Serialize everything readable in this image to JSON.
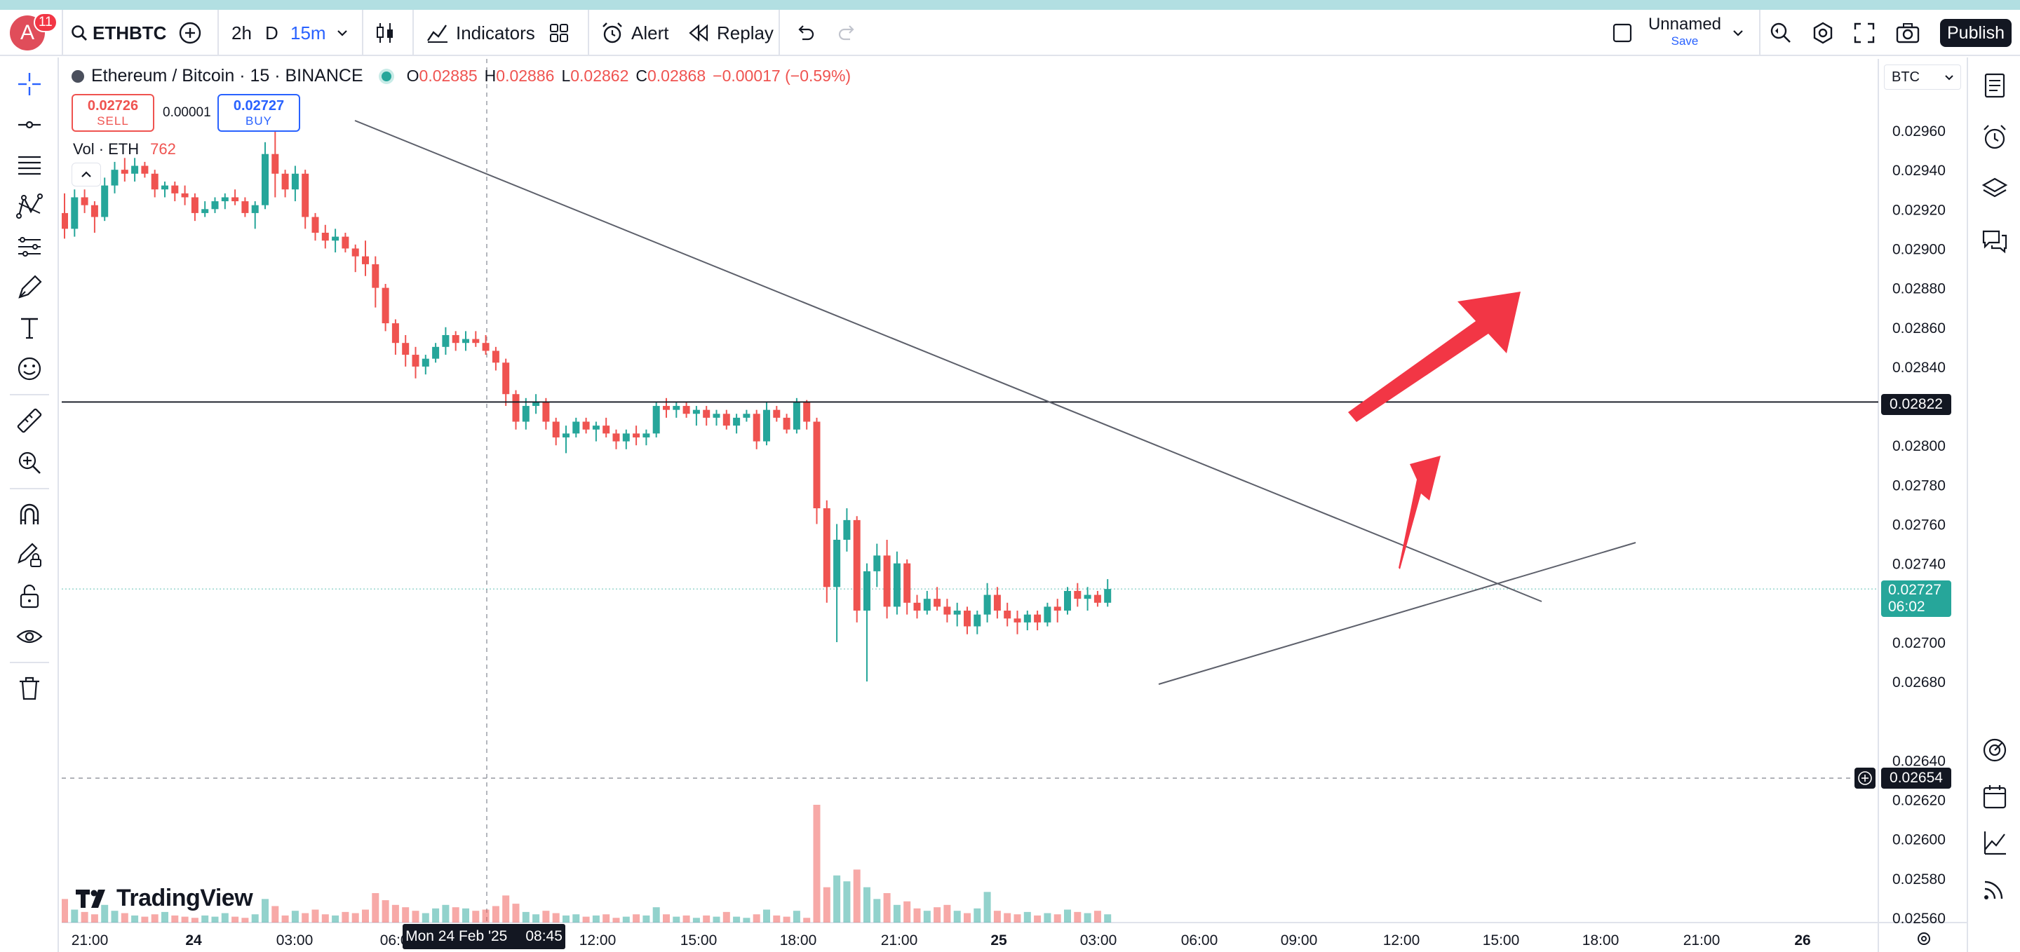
{
  "header": {
    "avatar_letter": "A",
    "notification_count": "11",
    "symbol": "ETHBTC",
    "intervals": [
      "2h",
      "D",
      "15m"
    ],
    "indicators_label": "Indicators",
    "alert_label": "Alert",
    "replay_label": "Replay",
    "layout_name": "Unnamed",
    "save_label": "Save",
    "publish_label": "Publish"
  },
  "legend": {
    "title": "Ethereum / Bitcoin · 15 · BINANCE",
    "o_label": "O",
    "o_value": "0.02885",
    "h_label": "H",
    "h_value": "0.02886",
    "l_label": "L",
    "l_value": "0.02862",
    "c_label": "C",
    "c_value": "0.02868",
    "change": "−0.00017 (−0.59%)",
    "sell_price": "0.02726",
    "sell_label": "SELL",
    "spread": "0.00001",
    "buy_price": "0.02727",
    "buy_label": "BUY",
    "vol_label": "Vol · ETH",
    "vol_value": "762"
  },
  "watermark": "TradingView",
  "currency_label": "BTC",
  "crosshair_date": "Mon 24 Feb '25",
  "crosshair_time": "08:45",
  "price_tags": {
    "horizontal_line": "0.02822",
    "last_price": "0.02727",
    "countdown": "06:02",
    "crosshair_price": "0.02654"
  },
  "colors": {
    "up": "#26a69a",
    "down": "#ef5350",
    "arrow": "#f23645",
    "accent": "#2962ff"
  },
  "chart_data": {
    "type": "candlestick",
    "symbol": "ETHBTC",
    "interval": "15",
    "y_ticks": [
      0.0296,
      0.0294,
      0.0292,
      0.029,
      0.0288,
      0.0286,
      0.0284,
      0.028,
      0.0278,
      0.0276,
      0.0274,
      0.027,
      0.0268,
      0.0264,
      0.0262,
      0.026,
      0.0258,
      0.0256
    ],
    "y_tick_labels": [
      "0.02960",
      "0.02940",
      "0.02920",
      "0.02900",
      "0.02880",
      "0.02860",
      "0.02840",
      "0.02800",
      "0.02780",
      "0.02760",
      "0.02740",
      "0.02700",
      "0.02680",
      "0.02640",
      "0.02620",
      "0.02600",
      "0.02580",
      "0.02560"
    ],
    "x_ticks": [
      "21:00",
      "24",
      "03:00",
      "06:00",
      "12:00",
      "15:00",
      "18:00",
      "21:00",
      "25",
      "03:00",
      "06:00",
      "09:00",
      "12:00",
      "15:00",
      "18:00",
      "21:00",
      "26"
    ],
    "ylim": [
      0.02553,
      0.02983
    ],
    "horizontal_line": 0.02822,
    "trendlines": [
      {
        "from": [
          0,
          0.02967
        ],
        "to": [
          127,
          0.02717
        ]
      },
      {
        "from": [
          77,
          0.02679
        ],
        "to": [
          123,
          0.0275
        ]
      }
    ],
    "candles": [
      [
        0.02918,
        0.02928,
        0.02905,
        0.0291
      ],
      [
        0.0291,
        0.0293,
        0.02906,
        0.02926
      ],
      [
        0.02926,
        0.0293,
        0.02918,
        0.02922
      ],
      [
        0.02922,
        0.02924,
        0.02908,
        0.02916
      ],
      [
        0.02916,
        0.02936,
        0.02914,
        0.02932
      ],
      [
        0.02932,
        0.02944,
        0.02928,
        0.0294
      ],
      [
        0.0294,
        0.02946,
        0.02934,
        0.02938
      ],
      [
        0.02938,
        0.02946,
        0.02934,
        0.02942
      ],
      [
        0.02942,
        0.02944,
        0.02936,
        0.02938
      ],
      [
        0.02938,
        0.0294,
        0.02926,
        0.0293
      ],
      [
        0.0293,
        0.02934,
        0.02926,
        0.02932
      ],
      [
        0.02932,
        0.02934,
        0.02924,
        0.02928
      ],
      [
        0.02928,
        0.02932,
        0.02922,
        0.02926
      ],
      [
        0.02926,
        0.02928,
        0.02914,
        0.02918
      ],
      [
        0.02918,
        0.02924,
        0.02916,
        0.0292
      ],
      [
        0.0292,
        0.02926,
        0.02918,
        0.02924
      ],
      [
        0.02924,
        0.02928,
        0.0292,
        0.02926
      ],
      [
        0.02926,
        0.0293,
        0.02922,
        0.02924
      ],
      [
        0.02924,
        0.02926,
        0.02916,
        0.02918
      ],
      [
        0.02918,
        0.02924,
        0.0291,
        0.02922
      ],
      [
        0.02922,
        0.02954,
        0.0292,
        0.02948
      ],
      [
        0.02948,
        0.02967,
        0.02926,
        0.02938
      ],
      [
        0.02938,
        0.0294,
        0.02926,
        0.0293
      ],
      [
        0.0293,
        0.02942,
        0.02924,
        0.02938
      ],
      [
        0.02938,
        0.0294,
        0.0291,
        0.02916
      ],
      [
        0.02916,
        0.02918,
        0.02904,
        0.02908
      ],
      [
        0.02908,
        0.02912,
        0.029,
        0.02904
      ],
      [
        0.02904,
        0.0291,
        0.02898,
        0.02906
      ],
      [
        0.02906,
        0.02908,
        0.02898,
        0.029
      ],
      [
        0.029,
        0.02902,
        0.02888,
        0.02896
      ],
      [
        0.02896,
        0.02904,
        0.02886,
        0.02892
      ],
      [
        0.02892,
        0.02896,
        0.0287,
        0.0288
      ],
      [
        0.0288,
        0.02882,
        0.02858,
        0.02862
      ],
      [
        0.02862,
        0.02864,
        0.02846,
        0.02852
      ],
      [
        0.02852,
        0.02856,
        0.0284,
        0.02846
      ],
      [
        0.02846,
        0.0285,
        0.02834,
        0.0284
      ],
      [
        0.0284,
        0.02846,
        0.02836,
        0.02844
      ],
      [
        0.02844,
        0.02852,
        0.02842,
        0.0285
      ],
      [
        0.0285,
        0.0286,
        0.02846,
        0.02856
      ],
      [
        0.02856,
        0.02858,
        0.02848,
        0.02852
      ],
      [
        0.02852,
        0.02858,
        0.02848,
        0.02854
      ],
      [
        0.02854,
        0.02858,
        0.0285,
        0.02852
      ],
      [
        0.02852,
        0.02856,
        0.02846,
        0.02848
      ],
      [
        0.02848,
        0.0285,
        0.02838,
        0.02842
      ],
      [
        0.02842,
        0.02844,
        0.0282,
        0.02826
      ],
      [
        0.02826,
        0.02828,
        0.02808,
        0.02812
      ],
      [
        0.02812,
        0.02824,
        0.02808,
        0.0282
      ],
      [
        0.0282,
        0.02826,
        0.02816,
        0.02822
      ],
      [
        0.02822,
        0.02824,
        0.02808,
        0.02812
      ],
      [
        0.02812,
        0.02814,
        0.028,
        0.02804
      ],
      [
        0.02804,
        0.0281,
        0.02796,
        0.02806
      ],
      [
        0.02806,
        0.02814,
        0.02804,
        0.02812
      ],
      [
        0.02812,
        0.02814,
        0.02806,
        0.02808
      ],
      [
        0.02808,
        0.02812,
        0.02802,
        0.0281
      ],
      [
        0.0281,
        0.02814,
        0.02804,
        0.02806
      ],
      [
        0.02806,
        0.02808,
        0.02798,
        0.02802
      ],
      [
        0.02802,
        0.02808,
        0.02798,
        0.02806
      ],
      [
        0.02806,
        0.0281,
        0.028,
        0.02804
      ],
      [
        0.02804,
        0.02808,
        0.028,
        0.02806
      ],
      [
        0.02806,
        0.02822,
        0.02804,
        0.0282
      ],
      [
        0.0282,
        0.02824,
        0.02814,
        0.02818
      ],
      [
        0.02818,
        0.02822,
        0.02814,
        0.0282
      ],
      [
        0.0282,
        0.02822,
        0.02814,
        0.02816
      ],
      [
        0.02816,
        0.0282,
        0.0281,
        0.02818
      ],
      [
        0.02818,
        0.0282,
        0.0281,
        0.02814
      ],
      [
        0.02814,
        0.02818,
        0.0281,
        0.02816
      ],
      [
        0.02816,
        0.02818,
        0.02808,
        0.0281
      ],
      [
        0.0281,
        0.02816,
        0.02806,
        0.02814
      ],
      [
        0.02814,
        0.02818,
        0.02812,
        0.02816
      ],
      [
        0.02816,
        0.02818,
        0.02798,
        0.02802
      ],
      [
        0.02802,
        0.02822,
        0.028,
        0.02818
      ],
      [
        0.02818,
        0.0282,
        0.02812,
        0.02814
      ],
      [
        0.02814,
        0.02816,
        0.02806,
        0.02808
      ],
      [
        0.02808,
        0.02824,
        0.02806,
        0.02822
      ],
      [
        0.02822,
        0.02823,
        0.02808,
        0.02812
      ],
      [
        0.02812,
        0.02814,
        0.0276,
        0.02768
      ],
      [
        0.02768,
        0.02772,
        0.0272,
        0.02728
      ],
      [
        0.02728,
        0.0276,
        0.027,
        0.02752
      ],
      [
        0.02752,
        0.02768,
        0.02746,
        0.02762
      ],
      [
        0.02762,
        0.02764,
        0.0271,
        0.02716
      ],
      [
        0.02716,
        0.0274,
        0.0268,
        0.02736
      ],
      [
        0.02736,
        0.0275,
        0.02728,
        0.02744
      ],
      [
        0.02744,
        0.02752,
        0.02712,
        0.02718
      ],
      [
        0.02718,
        0.02746,
        0.02714,
        0.0274
      ],
      [
        0.0274,
        0.02742,
        0.02714,
        0.0272
      ],
      [
        0.0272,
        0.02724,
        0.02712,
        0.02716
      ],
      [
        0.02716,
        0.02726,
        0.02714,
        0.02722
      ],
      [
        0.02722,
        0.02728,
        0.02716,
        0.02718
      ],
      [
        0.02718,
        0.02722,
        0.0271,
        0.02714
      ],
      [
        0.02714,
        0.0272,
        0.02708,
        0.02716
      ],
      [
        0.02716,
        0.02718,
        0.02704,
        0.02708
      ],
      [
        0.02708,
        0.02716,
        0.02704,
        0.02714
      ],
      [
        0.02714,
        0.0273,
        0.0271,
        0.02724
      ],
      [
        0.02724,
        0.02728,
        0.02712,
        0.02716
      ],
      [
        0.02716,
        0.0272,
        0.02708,
        0.02712
      ],
      [
        0.02712,
        0.02716,
        0.02704,
        0.0271
      ],
      [
        0.0271,
        0.02716,
        0.02706,
        0.02714
      ],
      [
        0.02714,
        0.02716,
        0.02706,
        0.0271
      ],
      [
        0.0271,
        0.0272,
        0.02708,
        0.02718
      ],
      [
        0.02718,
        0.02722,
        0.0271,
        0.02716
      ],
      [
        0.02716,
        0.02728,
        0.02714,
        0.02726
      ],
      [
        0.02726,
        0.0273,
        0.02718,
        0.02722
      ],
      [
        0.02722,
        0.02728,
        0.02716,
        0.02724
      ],
      [
        0.02724,
        0.02726,
        0.02718,
        0.0272
      ],
      [
        0.0272,
        0.02732,
        0.02718,
        0.02727
      ]
    ],
    "volumes": [
      40,
      22,
      18,
      14,
      30,
      20,
      16,
      12,
      10,
      14,
      18,
      12,
      10,
      8,
      12,
      10,
      16,
      10,
      8,
      14,
      40,
      28,
      12,
      20,
      16,
      22,
      14,
      12,
      18,
      16,
      22,
      50,
      38,
      30,
      26,
      20,
      16,
      24,
      30,
      26,
      24,
      20,
      22,
      28,
      46,
      32,
      18,
      14,
      20,
      16,
      12,
      14,
      10,
      12,
      14,
      8,
      10,
      14,
      12,
      26,
      14,
      10,
      12,
      8,
      12,
      10,
      18,
      10,
      8,
      14,
      22,
      12,
      10,
      20,
      8,
      200,
      60,
      80,
      70,
      90,
      60,
      40,
      50,
      30,
      36,
      24,
      20,
      26,
      30,
      20,
      16,
      24,
      52,
      20,
      16,
      14,
      18,
      12,
      16,
      14,
      22,
      18,
      16,
      20,
      14
    ]
  }
}
